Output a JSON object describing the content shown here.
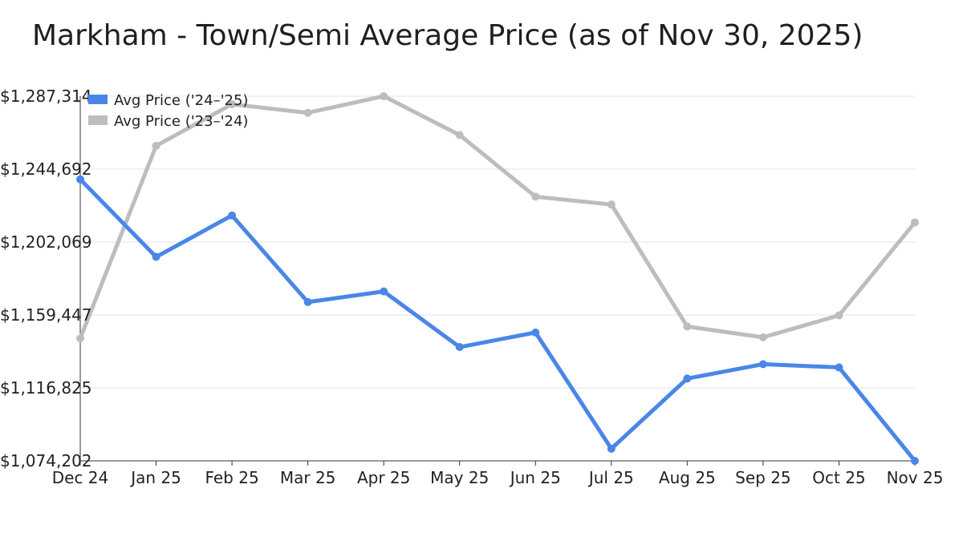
{
  "chart_data": {
    "type": "line",
    "title": "Markham - Town/Semi Average Price (as of Nov 30, 2025)",
    "xlabel": "",
    "ylabel": "",
    "categories": [
      "Dec 24",
      "Jan 25",
      "Feb 25",
      "Mar 25",
      "Apr 25",
      "May 25",
      "Jun 25",
      "Jul 25",
      "Aug 25",
      "Sep 25",
      "Oct 25",
      "Nov 25"
    ],
    "ylim": [
      1074202,
      1287314
    ],
    "yticks": [
      1074202,
      1116825,
      1159447,
      1202069,
      1244692,
      1287314
    ],
    "ytick_labels": [
      "$1,074,202",
      "$1,116,825",
      "$1,159,447",
      "$1,202,069",
      "$1,244,692",
      "$1,287,314"
    ],
    "grid": true,
    "legend_position": "top-left",
    "series": [
      {
        "name": "Avg Price ('24–'25)",
        "color": "#4a86e8",
        "values": [
          1238700,
          1193400,
          1217600,
          1167000,
          1173200,
          1140700,
          1149200,
          1081300,
          1122300,
          1130700,
          1128800,
          1074202
        ]
      },
      {
        "name": "Avg Price ('23–'24)",
        "color": "#bdbdbd",
        "values": [
          1145800,
          1258300,
          1282600,
          1277600,
          1287314,
          1264600,
          1228600,
          1224000,
          1152700,
          1146400,
          1159200,
          1213500
        ]
      }
    ]
  }
}
